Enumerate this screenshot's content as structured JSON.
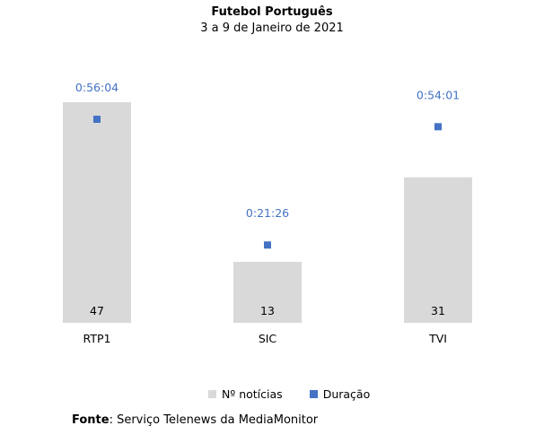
{
  "chart_data": {
    "type": "bar",
    "title": "Futebol Português",
    "subtitle": "3 a 9 de Janeiro de 2021",
    "categories": [
      "RTP1",
      "SIC",
      "TVI"
    ],
    "series": [
      {
        "name": "Nº notícias",
        "type": "bar",
        "values": [
          47,
          13,
          31
        ],
        "color": "#d9d9d9"
      },
      {
        "name": "Duração",
        "type": "marker",
        "values": [
          "0:56:04",
          "0:21:26",
          "0:54:01"
        ],
        "color": "#4472c4"
      }
    ],
    "legend": "bottom",
    "grid": false
  },
  "source": {
    "label": "Fonte",
    "text": ": Serviço Telenews da MediaMonitor"
  }
}
